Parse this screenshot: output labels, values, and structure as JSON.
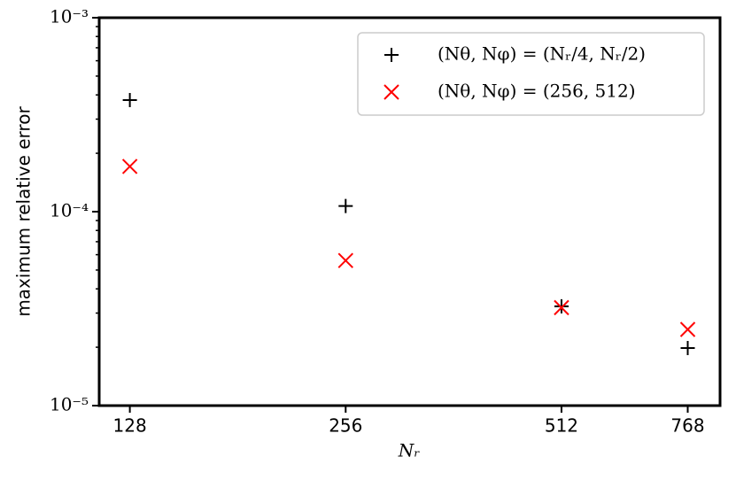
{
  "chart_data": {
    "type": "scatter",
    "x_label": "Nᵣ",
    "y_label": "maximum relative error",
    "x": [
      128,
      256,
      512,
      768
    ],
    "series": [
      {
        "name": "(Nθ, Nφ) = (Nᵣ/4, Nᵣ/2)",
        "color": "#000000",
        "marker": "plus",
        "values": [
          0.000376,
          0.000107,
          3.25e-05,
          1.98e-05
        ]
      },
      {
        "name": "(Nθ, Nφ) = (256, 512)",
        "color": "#ff0000",
        "marker": "x",
        "values": [
          0.000171,
          5.6e-05,
          3.2e-05,
          2.47e-05
        ]
      }
    ],
    "xscale": "log",
    "yscale": "log",
    "xlim": [
      116,
      852
    ],
    "ylim": [
      1e-05,
      0.001
    ],
    "xticks": [
      128,
      256,
      512,
      768
    ],
    "yticks": [
      {
        "value": 1e-05,
        "label": "10⁻⁵"
      },
      {
        "value": 0.0001,
        "label": "10⁻⁴"
      },
      {
        "value": 0.001,
        "label": "10⁻³"
      }
    ],
    "yminorticks": [
      2e-05,
      3e-05,
      4e-05,
      5e-05,
      6e-05,
      7e-05,
      8e-05,
      9e-05,
      0.0002,
      0.0003,
      0.0004,
      0.0005,
      0.0006,
      0.0007,
      0.0008,
      0.0009
    ],
    "grid": false,
    "legend": "upper right"
  }
}
